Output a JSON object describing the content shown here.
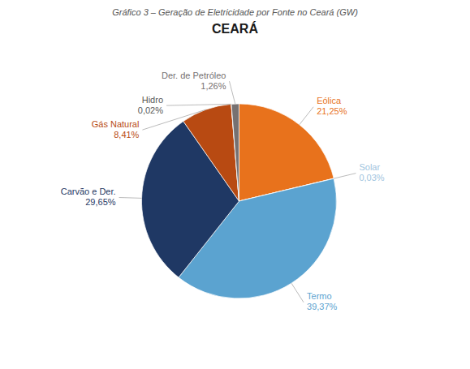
{
  "chart_data": {
    "type": "pie",
    "title": "CEARÁ",
    "subtitle": "Gráfico 3 – Geração de Eletricidade por Fonte no Ceará (GW)",
    "categories": [
      "Eólica",
      "Solar",
      "Termo",
      "Carvão e Der.",
      "Gás Natural",
      "Hidro",
      "Der. de Petróleo"
    ],
    "values": [
      21.25,
      0.03,
      39.37,
      29.65,
      8.41,
      0.02,
      1.26
    ],
    "value_labels": [
      "21,25%",
      "0,03%",
      "39,37%",
      "29,65%",
      "8,41%",
      "0,02%",
      "1,26%"
    ],
    "colors": [
      "#E8721C",
      "#9FC4DE",
      "#5BA3D0",
      "#1F3864",
      "#B84A12",
      "#595959",
      "#767171"
    ],
    "data_labels": true
  }
}
